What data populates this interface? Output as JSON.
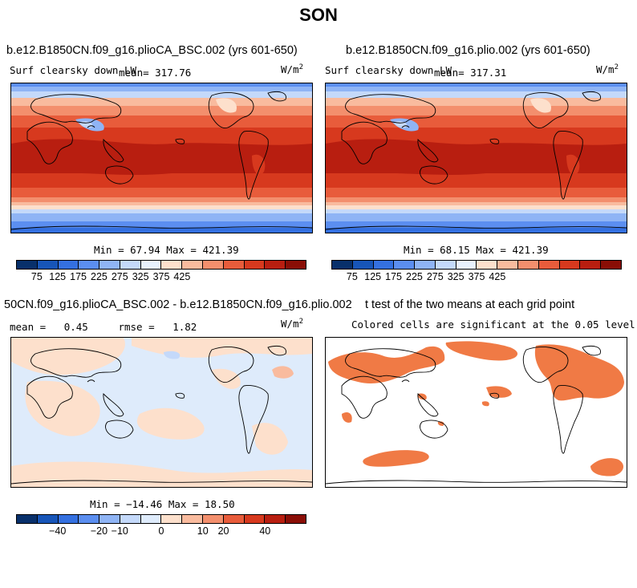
{
  "season_title": "SON",
  "colors": {
    "levels_abs": [
      "#08306b",
      "#1755b8",
      "#3470e0",
      "#5b8ef0",
      "#8fb4f5",
      "#c4d9fa",
      "#e8f1fd",
      "#fde0cc",
      "#f9bb9e",
      "#f38f6d",
      "#e85c3b",
      "#d7391e",
      "#b81e10",
      "#8a0e06"
    ],
    "levels_diff": [
      "#08306b",
      "#1755b8",
      "#3470e0",
      "#5b8ef0",
      "#8fb4f5",
      "#c4d9fa",
      "#deebfb",
      "#fde0cc",
      "#f9bb9e",
      "#f38f6d",
      "#e85c3b",
      "#d7391e",
      "#b81e10",
      "#8a0e06"
    ],
    "signif": "#f07a45"
  },
  "chart_data": [
    {
      "type": "heatmap",
      "title": "b.e12.B1850CN.f09_g16.plioCA_BSC.002 (yrs 601-650)",
      "variable": "Surf clearsky down LW",
      "mean_label": "mean= 317.76",
      "units_text": "W/m",
      "units_sup": "2",
      "range_label": "Min =  67.94 Max = 421.39",
      "colorbar_ticks": [
        "75",
        "125",
        "175",
        "225",
        "275",
        "325",
        "375",
        "425"
      ],
      "min": 67.94,
      "max": 421.39,
      "mean": 317.76
    },
    {
      "type": "heatmap",
      "title": "b.e12.B1850CN.f09_g16.plio.002 (yrs 601-650)",
      "variable": "Surf clearsky down LW",
      "mean_label": "mean= 317.31",
      "units_text": "W/m",
      "units_sup": "2",
      "range_label": "Min =  68.15 Max = 421.39",
      "colorbar_ticks": [
        "75",
        "125",
        "175",
        "225",
        "275",
        "325",
        "375",
        "425"
      ],
      "min": 68.15,
      "max": 421.39,
      "mean": 317.31
    },
    {
      "type": "heatmap",
      "title": "50CN.f09_g16.plioCA_BSC.002 - b.e12.B1850CN.f09_g16.plio.002",
      "stats_label": "mean =   0.45     rmse =   1.82",
      "units_text": "W/m",
      "units_sup": "2",
      "range_label": "Min = −14.46 Max =  18.50",
      "colorbar_ticks": [
        "−40",
        "−20",
        "−10",
        "0",
        "10",
        "20",
        "40"
      ],
      "min": -14.46,
      "max": 18.5,
      "mean": 0.45,
      "rmse": 1.82
    },
    {
      "type": "heatmap",
      "title": "t test of the two means at each grid point",
      "subtitle": "Colored cells are significant at the 0.05 level",
      "significance_level": 0.05
    }
  ]
}
